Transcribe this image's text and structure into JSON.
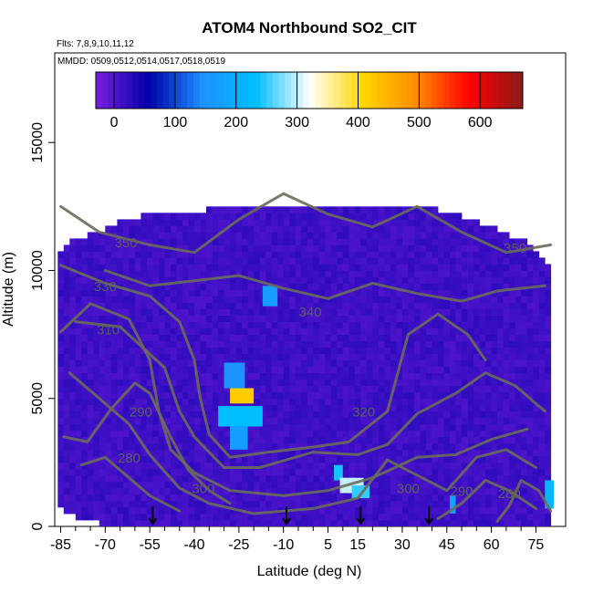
{
  "chart_data": {
    "type": "heatmap",
    "title": "ATOM4 Northbound SO2_CIT",
    "subtitle_flights": "Flts: 7,8,9,10,11,12",
    "subtitle_dates": "MMDD: 0509,0512,0514,0517,0518,0519",
    "xlabel": "Latitude (deg N)",
    "ylabel": "Altitude (m)",
    "xlim": [
      -87,
      85
    ],
    "ylim": [
      0,
      18500
    ],
    "x_ticks": [
      -85,
      -70,
      -55,
      -40,
      -25,
      -10,
      5,
      15,
      30,
      45,
      60,
      75
    ],
    "y_ticks": [
      0,
      5000,
      10000,
      15000
    ],
    "colorbar": {
      "range": [
        -30,
        670
      ],
      "ticks": [
        0,
        100,
        200,
        300,
        400,
        500,
        600
      ],
      "colors": [
        "#7a1fe0",
        "#0000a8",
        "#1e90ff",
        "#00bfff",
        "#ffffff",
        "#ffd700",
        "#ff8c00",
        "#ff0000",
        "#8b1a1a"
      ]
    },
    "background_value_ppt": 15,
    "field_extent": [
      {
        "lat": -86,
        "alt": [
          1000,
          10500
        ]
      },
      {
        "lat": -82,
        "alt": [
          600,
          11000
        ]
      },
      {
        "lat": -75,
        "alt": [
          300,
          11300
        ]
      },
      {
        "lat": -65,
        "alt": [
          100,
          11800
        ]
      },
      {
        "lat": -55,
        "alt": [
          0,
          12100
        ]
      },
      {
        "lat": -40,
        "alt": [
          0,
          12200
        ]
      },
      {
        "lat": -22,
        "alt": [
          0,
          12500
        ]
      },
      {
        "lat": 0,
        "alt": [
          0,
          12500
        ]
      },
      {
        "lat": 20,
        "alt": [
          0,
          12500
        ]
      },
      {
        "lat": 38,
        "alt": [
          0,
          12400
        ]
      },
      {
        "lat": 50,
        "alt": [
          0,
          12000
        ]
      },
      {
        "lat": 62,
        "alt": [
          0,
          11500
        ]
      },
      {
        "lat": 72,
        "alt": [
          0,
          11000
        ]
      },
      {
        "lat": 80,
        "alt": [
          0,
          10000
        ]
      }
    ],
    "plumes": [
      {
        "lat": [
          -28,
          -20
        ],
        "alt": [
          4800,
          5400
        ],
        "value": 420
      },
      {
        "lat": [
          -30,
          -23
        ],
        "alt": [
          5400,
          6400
        ],
        "value": 150
      },
      {
        "lat": [
          -32,
          -17
        ],
        "alt": [
          3900,
          4700
        ],
        "value": 230
      },
      {
        "lat": [
          -28,
          -22
        ],
        "alt": [
          3000,
          3900
        ],
        "value": 170
      },
      {
        "lat": [
          -17,
          -12
        ],
        "alt": [
          8600,
          9400
        ],
        "value": 170
      },
      {
        "lat": [
          7,
          10
        ],
        "alt": [
          1800,
          2400
        ],
        "value": 240
      },
      {
        "lat": [
          9,
          17
        ],
        "alt": [
          1300,
          1900
        ],
        "value": 300
      },
      {
        "lat": [
          13,
          19
        ],
        "alt": [
          1100,
          1600
        ],
        "value": 250
      },
      {
        "lat": [
          46,
          48
        ],
        "alt": [
          500,
          1200
        ],
        "value": 180
      },
      {
        "lat": [
          78,
          81
        ],
        "alt": [
          700,
          1800
        ],
        "value": 220
      }
    ],
    "contours": [
      {
        "label": "350",
        "points": [
          [
            -85,
            12500
          ],
          [
            -72,
            11500
          ],
          [
            -55,
            11000
          ],
          [
            -40,
            10700
          ],
          [
            -25,
            12000
          ],
          [
            -10,
            13000
          ],
          [
            5,
            12200
          ],
          [
            20,
            11700
          ],
          [
            35,
            12500
          ],
          [
            50,
            11500
          ],
          [
            65,
            10700
          ],
          [
            80,
            11000
          ]
        ]
      },
      {
        "label": "340",
        "points": [
          [
            -70,
            10000
          ],
          [
            -55,
            9400
          ],
          [
            -40,
            9600
          ],
          [
            -25,
            9800
          ],
          [
            -10,
            9300
          ],
          [
            5,
            8900
          ],
          [
            20,
            9500
          ],
          [
            35,
            9100
          ],
          [
            50,
            8800
          ],
          [
            62,
            9200
          ],
          [
            78,
            9400
          ]
        ]
      },
      {
        "label": "330",
        "points": [
          [
            -85,
            10200
          ],
          [
            -70,
            9500
          ],
          [
            -55,
            9000
          ],
          [
            -45,
            8000
          ],
          [
            -40,
            6500
          ],
          [
            -38,
            5000
          ],
          [
            -35,
            3600
          ],
          [
            -28,
            2700
          ],
          [
            -15,
            2900
          ],
          [
            0,
            3100
          ],
          [
            12,
            3300
          ],
          [
            25,
            4500
          ],
          [
            32,
            7500
          ],
          [
            42,
            8300
          ],
          [
            52,
            7500
          ],
          [
            58,
            6500
          ]
        ]
      },
      {
        "label": "320",
        "points": [
          [
            -80,
            8000
          ],
          [
            -65,
            7800
          ],
          [
            -50,
            6200
          ],
          [
            -45,
            4500
          ],
          [
            -40,
            3500
          ],
          [
            -30,
            2300
          ],
          [
            -18,
            2300
          ],
          [
            0,
            2900
          ],
          [
            15,
            2800
          ],
          [
            25,
            3200
          ],
          [
            35,
            4400
          ],
          [
            48,
            5200
          ],
          [
            58,
            6000
          ],
          [
            68,
            5500
          ],
          [
            78,
            4500
          ]
        ]
      },
      {
        "label": "310",
        "points": [
          [
            -85,
            7600
          ],
          [
            -75,
            8700
          ],
          [
            -62,
            8100
          ],
          [
            -55,
            6500
          ],
          [
            -52,
            4500
          ],
          [
            -48,
            3000
          ],
          [
            -40,
            2100
          ],
          [
            -28,
            1400
          ],
          [
            -10,
            1200
          ],
          [
            5,
            1400
          ],
          [
            20,
            1900
          ],
          [
            35,
            2700
          ],
          [
            48,
            2800
          ],
          [
            60,
            3400
          ],
          [
            72,
            3800
          ]
        ]
      },
      {
        "label": "300",
        "points": [
          [
            -82,
            6000
          ],
          [
            -70,
            4800
          ],
          [
            -62,
            4000
          ],
          [
            -55,
            2800
          ],
          [
            -45,
            1500
          ],
          [
            -35,
            900
          ],
          [
            -20,
            500
          ],
          [
            0,
            700
          ],
          [
            15,
            1100
          ],
          [
            25,
            2600
          ],
          [
            35,
            2000
          ],
          [
            45,
            1400
          ],
          [
            55,
            2700
          ],
          [
            65,
            3000
          ],
          [
            75,
            2300
          ]
        ]
      },
      {
        "label": "290",
        "points": [
          [
            -84,
            3500
          ],
          [
            -76,
            3300
          ],
          [
            -68,
            4600
          ],
          [
            -60,
            5600
          ],
          [
            -55,
            5200
          ],
          [
            -48,
            3500
          ],
          [
            -42,
            2200
          ],
          [
            -35,
            1400
          ],
          [
            -28,
            900
          ]
        ]
      },
      {
        "label": "280",
        "points": [
          [
            -78,
            2400
          ],
          [
            -70,
            2700
          ],
          [
            -62,
            1900
          ],
          [
            -55,
            1200
          ],
          [
            -45,
            600
          ]
        ]
      },
      {
        "label": "290",
        "points": [
          [
            42,
            300
          ],
          [
            50,
            900
          ],
          [
            58,
            1800
          ],
          [
            66,
            1400
          ],
          [
            75,
            700
          ]
        ]
      },
      {
        "label": "280",
        "points": [
          [
            62,
            200
          ],
          [
            66,
            800
          ],
          [
            70,
            1800
          ],
          [
            76,
            1400
          ],
          [
            80,
            600
          ]
        ]
      }
    ],
    "contour_labels": [
      {
        "text": "350",
        "lat": -63,
        "alt": 10900
      },
      {
        "text": "330",
        "lat": -70,
        "alt": 9200
      },
      {
        "text": "310",
        "lat": -69,
        "alt": 7500
      },
      {
        "text": "340",
        "lat": -1,
        "alt": 8200
      },
      {
        "text": "320",
        "lat": 17,
        "alt": 4300
      },
      {
        "text": "290",
        "lat": -58,
        "alt": 4300
      },
      {
        "text": "280",
        "lat": -62,
        "alt": 2500
      },
      {
        "text": "300",
        "lat": -37,
        "alt": 1300
      },
      {
        "text": "300",
        "lat": 32,
        "alt": 1300
      },
      {
        "text": "290",
        "lat": 50,
        "alt": 1200
      },
      {
        "text": "280",
        "lat": 66,
        "alt": 1100
      },
      {
        "text": "350",
        "lat": 68,
        "alt": 10700
      }
    ],
    "arrows": [
      -54,
      -9,
      16,
      39
    ]
  }
}
